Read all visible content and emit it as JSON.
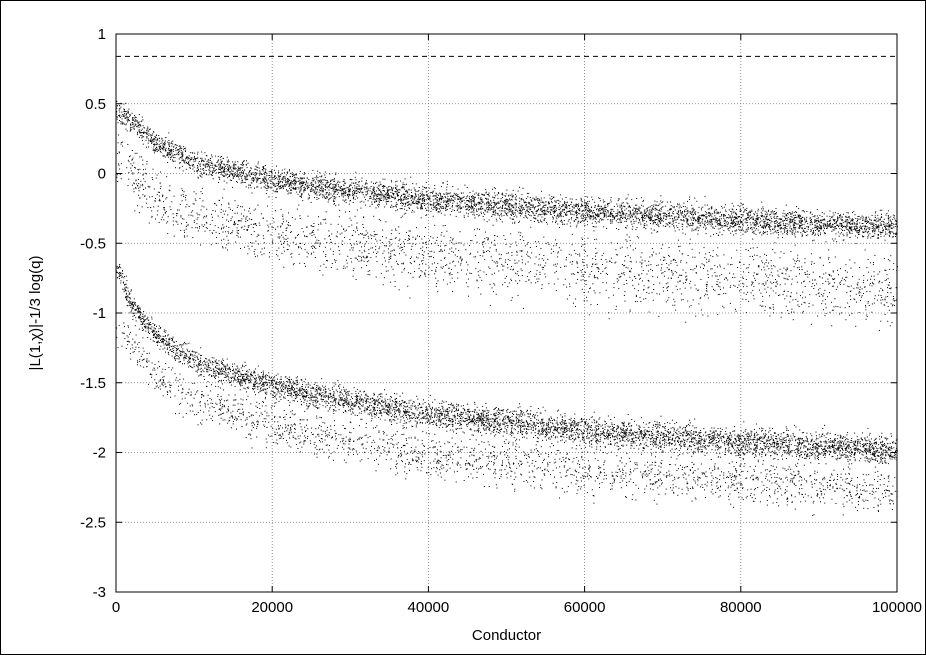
{
  "chart_data": {
    "type": "scatter",
    "xlabel": "Conductor",
    "ylabel": "|L(1,χ)|-1/3 log(q)",
    "xlim": [
      0,
      100000
    ],
    "ylim": [
      -3,
      1
    ],
    "x_ticks": [
      "0",
      "20000",
      "40000",
      "60000",
      "80000",
      "100000"
    ],
    "y_ticks": [
      "1",
      "0.5",
      "0",
      "-0.5",
      "-1",
      "-1.5",
      "-2",
      "-2.5",
      "-3"
    ],
    "grid": true,
    "reference_line": {
      "y": 0.84,
      "style": "dashed"
    },
    "series": [
      {
        "description_points": "upper dense band",
        "x": [
          500,
          5000,
          10000,
          20000,
          30000,
          40000,
          50000,
          60000,
          70000,
          80000,
          90000,
          100000
        ],
        "y": [
          0.45,
          0.22,
          0.08,
          -0.05,
          -0.12,
          -0.18,
          -0.23,
          -0.27,
          -0.3,
          -0.33,
          -0.36,
          -0.38
        ]
      },
      {
        "description_points": "upper sparse tail",
        "x": [
          500,
          5000,
          10000,
          20000,
          30000,
          40000,
          50000,
          60000,
          70000,
          80000,
          90000,
          100000
        ],
        "y": [
          0.1,
          -0.2,
          -0.3,
          -0.42,
          -0.5,
          -0.56,
          -0.62,
          -0.68,
          -0.72,
          -0.76,
          -0.8,
          -0.84
        ]
      },
      {
        "description_points": "lower dense band",
        "x": [
          500,
          2000,
          5000,
          10000,
          20000,
          30000,
          40000,
          50000,
          60000,
          70000,
          80000,
          90000,
          100000
        ],
        "y": [
          -0.7,
          -0.95,
          -1.15,
          -1.35,
          -1.52,
          -1.63,
          -1.72,
          -1.78,
          -1.84,
          -1.88,
          -1.92,
          -1.95,
          -1.98
        ]
      },
      {
        "description_points": "lower sparse tail",
        "x": [
          500,
          5000,
          10000,
          20000,
          30000,
          40000,
          50000,
          60000,
          70000,
          80000,
          90000,
          100000
        ],
        "y": [
          -1.1,
          -1.45,
          -1.62,
          -1.8,
          -1.92,
          -2.0,
          -2.06,
          -2.12,
          -2.16,
          -2.2,
          -2.24,
          -2.28
        ]
      }
    ]
  }
}
